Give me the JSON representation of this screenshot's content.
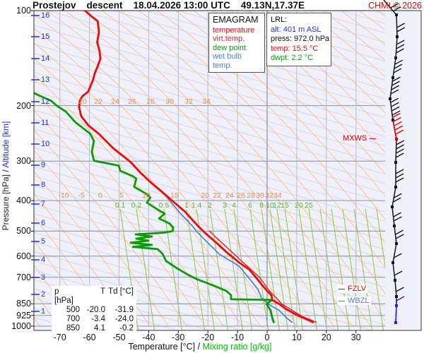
{
  "header": {
    "station": "Prostejov",
    "run_type": "descent",
    "datetime": "18.04.2026 13:00 UTC",
    "coords": "49.13N,17.37E",
    "copyright": "CHMI © 2026"
  },
  "legend": {
    "title": "EMAGRAM",
    "items": [
      {
        "label": "temperature",
        "color": "#ee0808"
      },
      {
        "label": "virt.temp.",
        "color": "#c03030"
      },
      {
        "label": "dew point",
        "color": "#0a9b0a"
      },
      {
        "label": "wet bulb temp.",
        "color": "#4d7fd1"
      }
    ]
  },
  "lrl": {
    "title": "LRL:",
    "lines": [
      {
        "text": "alt: 401 m ASL",
        "color": "#2233dd"
      },
      {
        "text": "press: 972.0 hPa",
        "color": "#111111"
      },
      {
        "text": "temp: 15.5 °C",
        "color": "#ee0808"
      },
      {
        "text": "dwpt: 2.2 °C",
        "color": "#0a9b0a"
      }
    ]
  },
  "table": {
    "headers": [
      "p [hPa]",
      "T",
      "Td [°C]"
    ],
    "rows": [
      [
        "500",
        "-20.0",
        "-31.9"
      ],
      [
        "700",
        "-3.4",
        "-24.0"
      ],
      [
        "850",
        "4.1",
        "-0.2"
      ]
    ]
  },
  "axes": {
    "pressure_label_black": "Pressure [hPa]  /",
    "pressure_label_blue": "Altitude [km]",
    "temp_label_black": "Temperature [°C]  /",
    "temp_label_green": "Mixing ratio [g/kg]",
    "pressure_ticks": [
      100,
      200,
      300,
      400,
      500,
      600,
      700,
      850,
      925,
      1000
    ],
    "altitude_ticks": [
      [
        16,
        22
      ],
      [
        15,
        52
      ],
      [
        14,
        83
      ],
      [
        13,
        113
      ],
      [
        12,
        144
      ],
      [
        11,
        174
      ],
      [
        10,
        204
      ],
      [
        9,
        234
      ],
      [
        8,
        262
      ],
      [
        7,
        289
      ],
      [
        6,
        316
      ],
      [
        5,
        342
      ],
      [
        4,
        368
      ],
      [
        3,
        393
      ],
      [
        2,
        417
      ],
      [
        1,
        441
      ]
    ],
    "temp_ticks": [
      -70,
      -60,
      -50,
      -40,
      -30,
      -20,
      -10,
      0,
      10,
      20,
      30
    ]
  },
  "inplot_labels": {
    "adiabat_row_upper": {
      "y": 138,
      "color": "#f08a4b",
      "items": [
        [
          "20",
          117
        ],
        [
          "22",
          139
        ],
        [
          "24",
          163
        ],
        [
          "26",
          187
        ],
        [
          "28",
          213
        ],
        [
          "30",
          240
        ],
        [
          "32",
          267
        ],
        [
          "34",
          292
        ]
      ]
    },
    "adiabat_row_lower": {
      "y": 271,
      "color": "#f08a4b",
      "items": [
        [
          "-10",
          90
        ],
        [
          "-5",
          115
        ],
        [
          "0",
          142
        ],
        [
          "5",
          172
        ],
        [
          "10",
          207
        ],
        [
          "15",
          247
        ],
        [
          "20",
          290
        ],
        [
          "22",
          307
        ],
        [
          "24",
          325
        ],
        [
          "26",
          341
        ],
        [
          "28",
          355
        ],
        [
          "30",
          368
        ],
        [
          "32",
          381
        ],
        [
          "34",
          393
        ]
      ]
    },
    "mixing_row": {
      "y": 285,
      "color": "#5cb81e",
      "items": [
        [
          "0.1",
          170
        ],
        [
          "0.2",
          193
        ],
        [
          "0.5",
          232
        ],
        [
          "1",
          264
        ],
        [
          "1.4",
          278
        ],
        [
          "2",
          297
        ],
        [
          "3",
          318
        ],
        [
          "4",
          331
        ],
        [
          "6",
          354
        ],
        [
          "8",
          370
        ],
        [
          "10",
          382
        ],
        [
          "12",
          392
        ],
        [
          "15",
          403
        ],
        [
          "20",
          423
        ],
        [
          "25",
          437
        ]
      ]
    }
  },
  "annotations": {
    "mxws": "MXWS",
    "fzlv": "FZLV",
    "wbzl": "WBZL"
  },
  "chart_data": {
    "type": "line",
    "title": "EMAGRAM sounding Prostejov 18.04.2026 13:00 UTC",
    "x_axis": {
      "label": "Temperature [°C]",
      "range": [
        -70,
        30
      ]
    },
    "y_axis": {
      "label": "Pressure [hPa]",
      "range": [
        100,
        1000
      ],
      "scale": "log"
    },
    "surface": {
      "alt_m": 401,
      "press_hPa": 972.0,
      "temp_C": 15.5,
      "dwpt_C": 2.2
    },
    "series": [
      {
        "name": "temperature",
        "color": "#ee0808",
        "width": 2.8,
        "points": [
          [
            100,
            -61.5
          ],
          [
            104,
            -59.5
          ],
          [
            108,
            -57.2
          ],
          [
            117,
            -56.8
          ],
          [
            126,
            -57.4
          ],
          [
            134,
            -56.6
          ],
          [
            142,
            -56.3
          ],
          [
            150,
            -57.2
          ],
          [
            158,
            -58.2
          ],
          [
            165,
            -58.7
          ],
          [
            173,
            -59.6
          ],
          [
            181,
            -60.5
          ],
          [
            186,
            -62.2
          ],
          [
            192,
            -63.2
          ],
          [
            202,
            -63.5
          ],
          [
            216,
            -62.8
          ],
          [
            231,
            -60.4
          ],
          [
            246,
            -56.8
          ],
          [
            273,
            -52.0
          ],
          [
            302,
            -46.1
          ],
          [
            327,
            -42.7
          ],
          [
            353,
            -38.9
          ],
          [
            372,
            -36.0
          ],
          [
            406,
            -31.3
          ],
          [
            434,
            -27.7
          ],
          [
            481,
            -23.4
          ],
          [
            506,
            -21.0
          ],
          [
            547,
            -16.9
          ],
          [
            582,
            -13.8
          ],
          [
            632,
            -9.1
          ],
          [
            662,
            -6.0
          ],
          [
            708,
            -3.4
          ],
          [
            737,
            -1.9
          ],
          [
            773,
            0.0
          ],
          [
            800,
            1.5
          ],
          [
            826,
            1.7
          ],
          [
            851,
            4.1
          ],
          [
            883,
            6.4
          ],
          [
            929,
            10.7
          ],
          [
            953,
            13.6
          ],
          [
            972,
            15.5
          ]
        ]
      },
      {
        "name": "virt.temp.",
        "color": "#c03030",
        "width": 1.4,
        "points": [
          [
            500,
            -19.5
          ],
          [
            600,
            -10.4
          ],
          [
            700,
            -2.6
          ],
          [
            773,
            0.8
          ],
          [
            851,
            5.0
          ],
          [
            929,
            11.6
          ],
          [
            972,
            16.6
          ]
        ]
      },
      {
        "name": "dew point",
        "color": "#0a9b0a",
        "width": 2.8,
        "points": [
          [
            182,
            -79.0
          ],
          [
            184,
            -78.0
          ],
          [
            193,
            -73.0
          ],
          [
            200,
            -71.1
          ],
          [
            209,
            -68.0
          ],
          [
            226,
            -64.7
          ],
          [
            246,
            -59.7
          ],
          [
            259,
            -58.5
          ],
          [
            280,
            -59.2
          ],
          [
            299,
            -58.5
          ],
          [
            310,
            -50.1
          ],
          [
            322,
            -49.6
          ],
          [
            335,
            -45.3
          ],
          [
            341,
            -44.2
          ],
          [
            362,
            -44.9
          ],
          [
            381,
            -40.8
          ],
          [
            391,
            -39.4
          ],
          [
            406,
            -40.6
          ],
          [
            427,
            -37.0
          ],
          [
            440,
            -34.6
          ],
          [
            456,
            -36.5
          ],
          [
            473,
            -32.9
          ],
          [
            488,
            -31.7
          ],
          [
            500,
            -31.9
          ],
          [
            506,
            -35.3
          ],
          [
            512,
            -44.4
          ],
          [
            520,
            -38.9
          ],
          [
            528,
            -44.2
          ],
          [
            536,
            -40.1
          ],
          [
            544,
            -46.1
          ],
          [
            553,
            -38.9
          ],
          [
            561,
            -45.3
          ],
          [
            570,
            -37.0
          ],
          [
            591,
            -35.3
          ],
          [
            622,
            -34.1
          ],
          [
            655,
            -30.5
          ],
          [
            682,
            -27.4
          ],
          [
            708,
            -24.0
          ],
          [
            741,
            -18.6
          ],
          [
            773,
            -13.8
          ],
          [
            797,
            -12.2
          ],
          [
            822,
            -12.2
          ],
          [
            826,
            1.7
          ],
          [
            851,
            -0.2
          ],
          [
            892,
            1.2
          ],
          [
            939,
            1.7
          ],
          [
            972,
            2.2
          ]
        ]
      },
      {
        "name": "wet bulb temp.",
        "color": "#4d7fd1",
        "width": 1.7,
        "points": [
          [
            375,
            -35.3
          ],
          [
            434,
            -29.8
          ],
          [
            481,
            -25.3
          ],
          [
            506,
            -23.4
          ],
          [
            547,
            -19.8
          ],
          [
            591,
            -16.2
          ],
          [
            645,
            -9.5
          ],
          [
            726,
            -5.0
          ],
          [
            765,
            -3.1
          ],
          [
            813,
            -1.9
          ],
          [
            851,
            0.3
          ],
          [
            892,
            4.1
          ],
          [
            939,
            6.4
          ],
          [
            972,
            8.4
          ]
        ]
      }
    ],
    "wind_barbs": {
      "profile_top": [
        543,
        0
      ],
      "levels": [
        {
          "y": 21,
          "x": 561,
          "feathers": 2,
          "color": "black"
        },
        {
          "y": 52,
          "x": 562,
          "feathers": 2,
          "color": "black"
        },
        {
          "y": 82,
          "x": 560,
          "feathers": 3,
          "color": "black"
        },
        {
          "y": 110,
          "x": 556,
          "feathers": 3,
          "color": "black"
        },
        {
          "y": 140,
          "x": 552,
          "feathers": 4,
          "color": "black"
        },
        {
          "y": 170,
          "x": 556,
          "feathers": 4,
          "color": "black"
        },
        {
          "y": 197,
          "x": 561,
          "feathers": 5,
          "color": "red"
        },
        {
          "y": 230,
          "x": 560,
          "feathers": 4,
          "color": "black"
        },
        {
          "y": 265,
          "x": 560,
          "feathers": 3,
          "color": "black"
        },
        {
          "y": 293,
          "x": 555,
          "feathers": 2,
          "color": "black"
        },
        {
          "y": 320,
          "x": 558,
          "feathers": 2,
          "color": "black"
        },
        {
          "y": 345,
          "x": 561,
          "feathers": 2,
          "color": "black"
        },
        {
          "y": 372,
          "x": 556,
          "feathers": 1,
          "color": "black"
        },
        {
          "y": 397,
          "x": 559,
          "feathers": 1,
          "color": "black"
        },
        {
          "y": 420,
          "x": 561,
          "feathers": 1,
          "color": "black"
        },
        {
          "y": 433,
          "x": 561,
          "feathers": 1,
          "color": "blue"
        },
        {
          "y": 457,
          "x": 560,
          "feathers": 0,
          "color": "blue"
        }
      ]
    }
  },
  "colors": {
    "plot_bg": "#f0f0fb",
    "isobar": "#9aa0ac",
    "isotherm": "#b9bdc9",
    "isotherm_zero": "#8f94a6",
    "diag_gray": "#d7d9e2",
    "adiabat_orange": "#f7c795",
    "mixing_green": "#97ce45",
    "barb_black": "#151515",
    "barb_red": "#e00000",
    "barb_blue": "#2424d8",
    "border": "#333333"
  }
}
